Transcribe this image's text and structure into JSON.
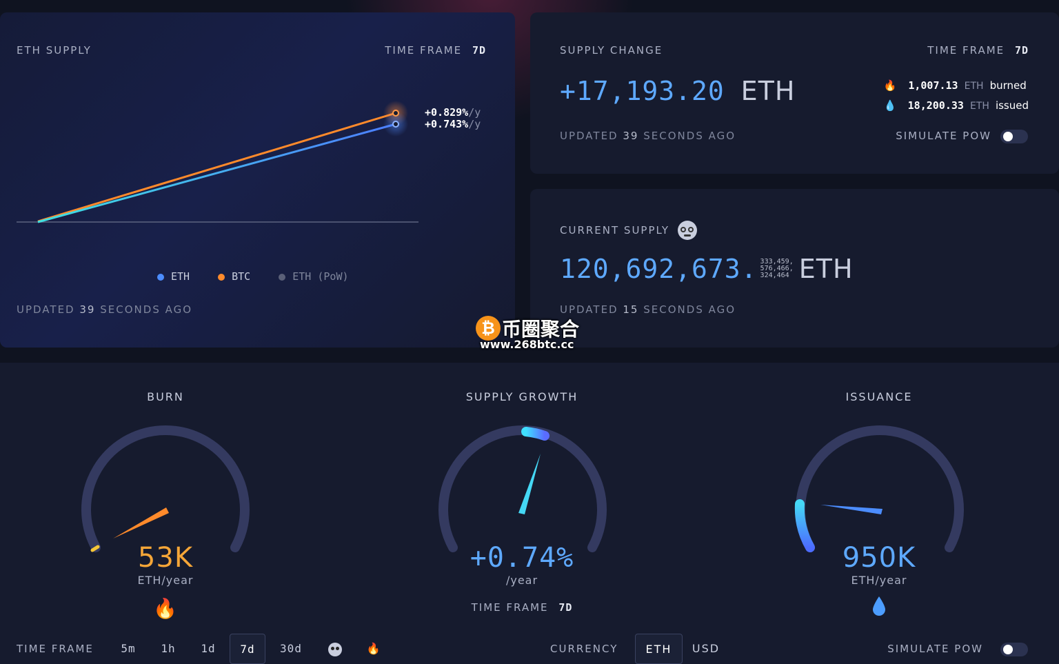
{
  "eth_supply": {
    "title": "ETH SUPPLY",
    "time_frame_label": "TIME FRAME",
    "time_frame_value": "7d",
    "series_labels": [
      {
        "value": "+0.829%",
        "unit": "/y"
      },
      {
        "value": "+0.743%",
        "unit": "/y"
      }
    ],
    "legend": [
      {
        "label": "ETH",
        "color": "#4c8dff"
      },
      {
        "label": "BTC",
        "color": "#ff8a2b"
      },
      {
        "label": "ETH (PoW)",
        "color": "#5a6078"
      }
    ],
    "updated_prefix": "UPDATED",
    "updated_num": "39",
    "updated_suffix": "SECONDS AGO"
  },
  "supply_change": {
    "title": "SUPPLY CHANGE",
    "time_frame_label": "TIME FRAME",
    "time_frame_value": "7d",
    "amount": "+17,193.20",
    "unit": "ETH",
    "burned_value": "1,007.13",
    "burned_unit": "ETH",
    "burned_label": "burned",
    "issued_value": "18,200.33",
    "issued_unit": "ETH",
    "issued_label": "issued",
    "updated_prefix": "UPDATED",
    "updated_num": "39",
    "updated_suffix": "SECONDS AGO",
    "simulate_label": "SIMULATE PoW"
  },
  "current_supply": {
    "title": "CURRENT SUPPLY",
    "amount": "120,692,673.",
    "decimals_line1": "333,459,",
    "decimals_line2": "576,466,",
    "decimals_line3": "324,464",
    "unit": "ETH",
    "updated_prefix": "UPDATED",
    "updated_num": "15",
    "updated_suffix": "SECONDS AGO"
  },
  "watermark": {
    "text": "币圈聚合",
    "url": "www.268btc.cc"
  },
  "gauges": {
    "burn": {
      "title": "BURN",
      "value": "53K",
      "unit": "ETH/year",
      "color": "#f5a638"
    },
    "growth": {
      "title": "SUPPLY GROWTH",
      "value": "+0.74%",
      "unit": "/year",
      "time_frame_label": "TIME FRAME",
      "time_frame_value": "7d",
      "color": "#5ea9ff"
    },
    "issuance": {
      "title": "ISSUANCE",
      "value": "950K",
      "unit": "ETH/year",
      "color": "#5ea9ff"
    }
  },
  "footer": {
    "time_frame_label": "TIME FRAME",
    "time_frames": [
      "5m",
      "1h",
      "1d",
      "7d",
      "30d"
    ],
    "active_time_frame": "7d",
    "currency_label": "CURRENCY",
    "currencies": [
      "ETH",
      "USD"
    ],
    "active_currency": "ETH",
    "simulate_label": "SIMULATE PoW"
  }
}
